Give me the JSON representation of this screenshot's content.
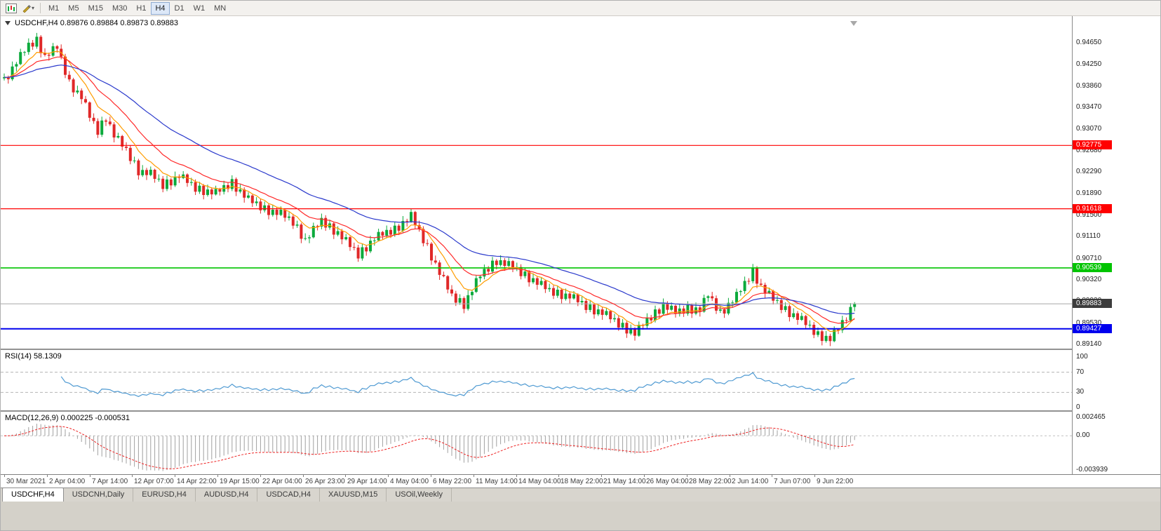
{
  "toolbar": {
    "timeframes": [
      "M1",
      "M5",
      "M15",
      "M30",
      "H1",
      "H4",
      "D1",
      "W1",
      "MN"
    ],
    "active_timeframe": "H4",
    "icons": [
      "chart-window-icon",
      "drawing-tool-icon"
    ]
  },
  "chart": {
    "title": "USDCHF,H4 0.89876 0.89884 0.89873 0.89883",
    "symbol": "USDCHF",
    "timeframe": "H4",
    "quote": {
      "open": "0.89876",
      "high": "0.89884",
      "low": "0.89873",
      "close": "0.89883"
    },
    "price_axis_labels": [
      "0.94650",
      "0.94250",
      "0.93860",
      "0.93470",
      "0.93070",
      "0.92680",
      "0.92290",
      "0.91890",
      "0.91500",
      "0.91110",
      "0.90710",
      "0.90320",
      "0.89930",
      "0.89530",
      "0.89140"
    ],
    "levels": [
      {
        "label": "0.92775",
        "price": 0.92775,
        "color": "#ff0000",
        "width": 1.2
      },
      {
        "label": "0.91618",
        "price": 0.91618,
        "color": "#ff0000",
        "width": 1.2
      },
      {
        "label": "0.90539",
        "price": 0.90539,
        "color": "#00c400",
        "width": 1.6
      },
      {
        "label": "0.89427",
        "price": 0.89427,
        "color": "#0000ee",
        "width": 2
      }
    ],
    "current_price": {
      "label": "0.89883",
      "value": 0.89883,
      "box_color": "#3c3c3c",
      "line_color": "#a6a6a6"
    },
    "time_axis_labels": [
      "30 Mar 2021",
      "2 Apr 04:00",
      "7 Apr 14:00",
      "12 Apr 07:00",
      "14 Apr 22:00",
      "19 Apr 15:00",
      "22 Apr 04:00",
      "26 Apr 23:00",
      "29 Apr 14:00",
      "4 May 04:00",
      "6 May 22:00",
      "11 May 14:00",
      "14 May 04:00",
      "18 May 22:00",
      "21 May 14:00",
      "26 May 04:00",
      "28 May 22:00",
      "2 Jun 14:00",
      "7 Jun 07:00",
      "9 Jun 22:00"
    ]
  },
  "rsi": {
    "label": "RSI(14) 58.1309",
    "period": 14,
    "value": 58.1309,
    "scale_labels": [
      "100",
      "70",
      "30",
      "0"
    ],
    "dashed_levels": [
      70,
      30
    ],
    "line_color": "#4f9ad2"
  },
  "macd": {
    "label": "MACD(12,26,9) 0.000225 -0.000531",
    "params": [
      12,
      26,
      9
    ],
    "macd_value": 0.000225,
    "signal_value": -0.000531,
    "scale_labels": [
      "0.002465",
      "0.00",
      "-0.003939"
    ],
    "scale_values": [
      0.002465,
      0,
      -0.003939
    ],
    "ylim": [
      -0.00425,
      0.00265
    ],
    "histogram_color": "#a0a0a0",
    "signal_color": "#ee2222"
  },
  "tabs": [
    {
      "label": "USDCHF,H4",
      "active": true
    },
    {
      "label": "USDCNH,Daily",
      "active": false
    },
    {
      "label": "EURUSD,H4",
      "active": false
    },
    {
      "label": "AUDUSD,H4",
      "active": false
    },
    {
      "label": "USDCAD,H4",
      "active": false
    },
    {
      "label": "XAUUSD,M15",
      "active": false
    },
    {
      "label": "USOil,Weekly",
      "active": false
    }
  ],
  "chart_data": {
    "type": "candlestick",
    "symbol": "USDCHF",
    "timeframe": "H4",
    "bars": 210,
    "x_start": "30 Mar 2021",
    "x_end": "11 Jun 2021",
    "ylim": [
      0.89064,
      0.95136
    ],
    "up_color": "#0caa3c",
    "down_color": "#e02828",
    "moving_averages": [
      {
        "period": 8,
        "color": "#ff9c00"
      },
      {
        "period": 17,
        "color": "#ff2a2a"
      },
      {
        "period": 40,
        "color": "#2b3acc"
      }
    ],
    "price_path": [
      [
        0,
        0.9396
      ],
      [
        3,
        0.943
      ],
      [
        6,
        0.946
      ],
      [
        8,
        0.947
      ],
      [
        10,
        0.944
      ],
      [
        13,
        0.9456
      ],
      [
        16,
        0.9392
      ],
      [
        19,
        0.9366
      ],
      [
        21,
        0.933
      ],
      [
        23,
        0.9304
      ],
      [
        25,
        0.933
      ],
      [
        27,
        0.9296
      ],
      [
        30,
        0.9268
      ],
      [
        33,
        0.9232
      ],
      [
        36,
        0.9225
      ],
      [
        39,
        0.9205
      ],
      [
        43,
        0.9222
      ],
      [
        47,
        0.92
      ],
      [
        52,
        0.919
      ],
      [
        56,
        0.921
      ],
      [
        60,
        0.9178
      ],
      [
        64,
        0.9162
      ],
      [
        68,
        0.9152
      ],
      [
        71,
        0.9138
      ],
      [
        74,
        0.9105
      ],
      [
        78,
        0.914
      ],
      [
        82,
        0.9118
      ],
      [
        87,
        0.9078
      ],
      [
        91,
        0.9108
      ],
      [
        96,
        0.9125
      ],
      [
        100,
        0.9148
      ],
      [
        104,
        0.9092
      ],
      [
        107,
        0.9045
      ],
      [
        110,
        0.9002
      ],
      [
        113,
        0.8988
      ],
      [
        117,
        0.904
      ],
      [
        121,
        0.9068
      ],
      [
        125,
        0.9055
      ],
      [
        130,
        0.9032
      ],
      [
        134,
        0.9012
      ],
      [
        139,
        0.9002
      ],
      [
        143,
        0.8984
      ],
      [
        147,
        0.8972
      ],
      [
        151,
        0.8952
      ],
      [
        155,
        0.8934
      ],
      [
        158,
        0.8958
      ],
      [
        162,
        0.8986
      ],
      [
        165,
        0.8972
      ],
      [
        168,
        0.898
      ],
      [
        171,
        0.8978
      ],
      [
        173,
        0.9004
      ],
      [
        176,
        0.8972
      ],
      [
        180,
        0.9002
      ],
      [
        184,
        0.9048
      ],
      [
        186,
        0.902
      ],
      [
        189,
        0.8996
      ],
      [
        192,
        0.8978
      ],
      [
        196,
        0.8958
      ],
      [
        200,
        0.8932
      ],
      [
        203,
        0.8924
      ],
      [
        205,
        0.8942
      ],
      [
        207,
        0.8965
      ],
      [
        209,
        0.8988
      ]
    ]
  }
}
